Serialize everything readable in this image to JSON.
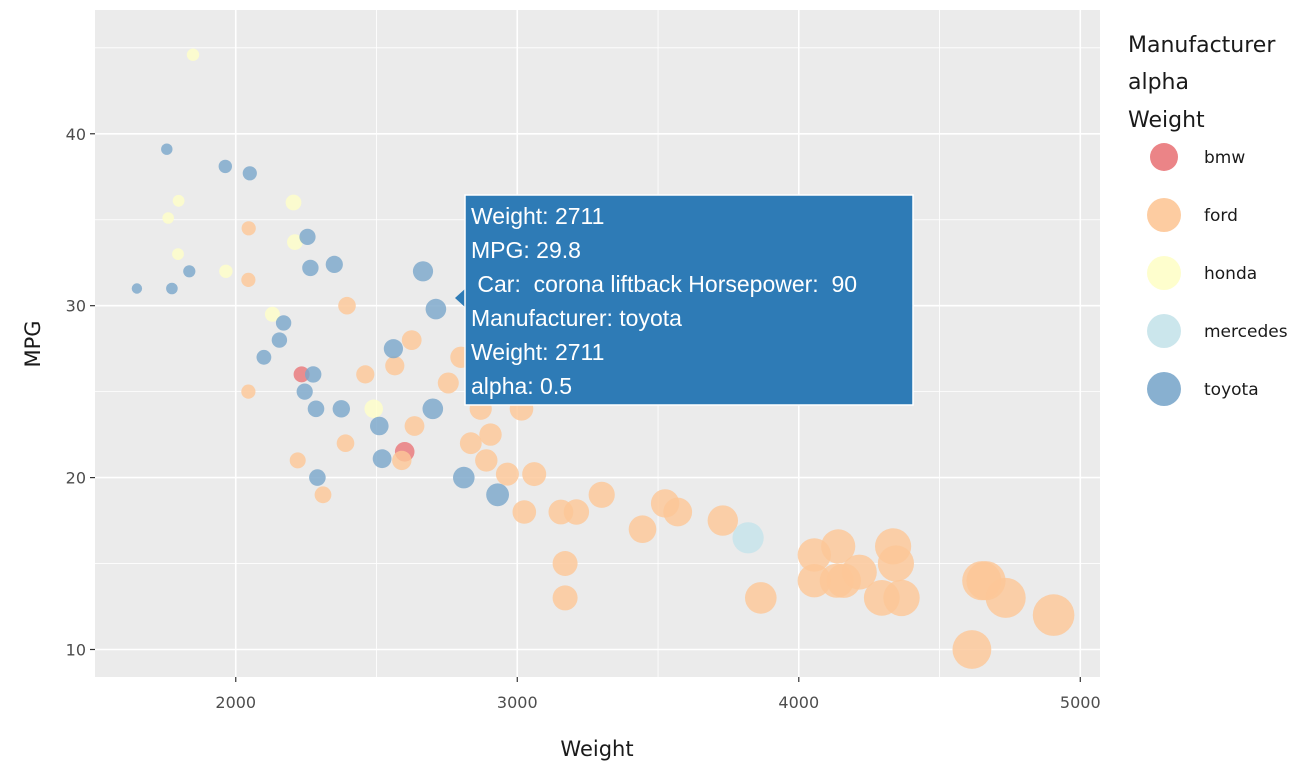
{
  "chart_data": {
    "type": "scatter",
    "xlabel": "Weight",
    "ylabel": "MPG",
    "xlim": [
      1500,
      5070
    ],
    "ylim": [
      8.4,
      47.2
    ],
    "x_ticks": [
      "2000",
      "3000",
      "4000",
      "5000"
    ],
    "x_tick_values": [
      2000,
      3000,
      4000,
      5000
    ],
    "y_ticks": [
      "10",
      "20",
      "30",
      "40"
    ],
    "y_tick_values": [
      10,
      20,
      30,
      40
    ],
    "grid": true,
    "legend_position": "right",
    "legend_title": [
      "Manufacturer",
      "alpha",
      "Weight"
    ],
    "series": [
      {
        "name": "bmw",
        "color": "#e9777a",
        "points": [
          [
            2234,
            26
          ],
          [
            2600,
            21.5
          ]
        ]
      },
      {
        "name": "ford",
        "color": "#fdc797",
        "points": [
          [
            2046,
            34.5
          ],
          [
            2045,
            31.5
          ],
          [
            2045,
            25
          ],
          [
            2220,
            21
          ],
          [
            2310,
            19
          ],
          [
            2395,
            30
          ],
          [
            2390,
            22
          ],
          [
            2460,
            26
          ],
          [
            2565,
            26.5
          ],
          [
            2590,
            21
          ],
          [
            2625,
            28
          ],
          [
            2635,
            23
          ],
          [
            2755,
            25.5
          ],
          [
            2800,
            27
          ],
          [
            2835,
            22
          ],
          [
            2870,
            24
          ],
          [
            2890,
            21
          ],
          [
            2905,
            22.5
          ],
          [
            2965,
            20.2
          ],
          [
            3015,
            24
          ],
          [
            3025,
            18
          ],
          [
            3060,
            20.2
          ],
          [
            3155,
            18
          ],
          [
            3170,
            15
          ],
          [
            3170,
            13
          ],
          [
            3210,
            18
          ],
          [
            3300,
            19
          ],
          [
            3445,
            17
          ],
          [
            3525,
            18.5
          ],
          [
            3570,
            18
          ],
          [
            3730,
            17.5
          ],
          [
            3865,
            13
          ],
          [
            4055,
            15.5
          ],
          [
            4055,
            14
          ],
          [
            4140,
            16
          ],
          [
            4135,
            14
          ],
          [
            4160,
            14
          ],
          [
            4215,
            14.5
          ],
          [
            4295,
            13
          ],
          [
            4335,
            16
          ],
          [
            4345,
            15
          ],
          [
            4365,
            13
          ],
          [
            4615,
            10
          ],
          [
            4650,
            14
          ],
          [
            4665,
            14
          ],
          [
            4735,
            13
          ],
          [
            4905,
            12
          ]
        ]
      },
      {
        "name": "honda",
        "color": "#fefec8",
        "points": [
          [
            1848,
            44.6
          ],
          [
            1760,
            35.1
          ],
          [
            1797,
            36.1
          ],
          [
            1795,
            33
          ],
          [
            1965,
            32
          ],
          [
            2205,
            36
          ],
          [
            2210,
            33.7
          ],
          [
            2130,
            29.5
          ],
          [
            2490,
            24
          ]
        ]
      },
      {
        "name": "mercedes",
        "color": "#c5e3ea",
        "points": [
          [
            3820,
            16.5
          ]
        ]
      },
      {
        "name": "toyota",
        "color": "#7ba7cb",
        "points": [
          [
            1649,
            31
          ],
          [
            1755,
            39.1
          ],
          [
            1773,
            31
          ],
          [
            1835,
            32
          ],
          [
            1963,
            38.1
          ],
          [
            2050,
            37.7
          ],
          [
            2100,
            27
          ],
          [
            2155,
            28
          ],
          [
            2170,
            29
          ],
          [
            2245,
            25
          ],
          [
            2255,
            34
          ],
          [
            2265,
            32.2
          ],
          [
            2275,
            26
          ],
          [
            2285,
            24
          ],
          [
            2290,
            20
          ],
          [
            2350,
            32.4
          ],
          [
            2375,
            24
          ],
          [
            2510,
            23
          ],
          [
            2520,
            21.1
          ],
          [
            2560,
            27.5
          ],
          [
            2665,
            32
          ],
          [
            2711,
            29.8
          ],
          [
            2700,
            24
          ],
          [
            2810,
            20
          ],
          [
            2930,
            19
          ]
        ]
      }
    ]
  },
  "tooltip": {
    "lines": [
      "Weight: 2711",
      "MPG: 29.8",
      " Car:  corona liftback Horsepower:  90",
      "Manufacturer: toyota",
      "Weight: 2711",
      "alpha: 0.5"
    ],
    "color": "#2e7bb6"
  },
  "colors": {
    "panel": "#ebebeb",
    "grid": "#ffffff"
  }
}
